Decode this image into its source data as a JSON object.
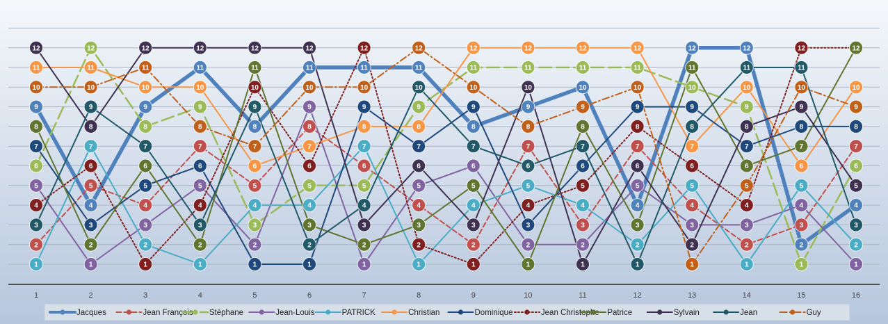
{
  "chart_data": {
    "type": "line",
    "title": "",
    "xlabel": "",
    "ylabel": "",
    "x": [
      "1",
      "2",
      "3",
      "4",
      "5",
      "6",
      "7",
      "8",
      "9",
      "10",
      "11",
      "12",
      "13",
      "14",
      "15",
      "16"
    ],
    "ylim": [
      0,
      13
    ],
    "grid": true,
    "legend_position": "bottom",
    "series": [
      {
        "name": "Jacques",
        "color": "#4f81bd",
        "dash": "solid",
        "width": 5.5,
        "values": [
          9,
          4,
          9,
          11,
          8,
          11,
          11,
          11,
          8,
          9,
          10,
          4,
          12,
          12,
          2,
          4
        ]
      },
      {
        "name": "Jean François",
        "color": "#c0504d",
        "dash": "dashed",
        "width": 2,
        "values": [
          2,
          5,
          4,
          7,
          5,
          8,
          6,
          4,
          2,
          7,
          3,
          7,
          4,
          2,
          3,
          7
        ]
      },
      {
        "name": "Stéphane",
        "color": "#9bbb59",
        "dash": "longdash",
        "width": 2.5,
        "values": [
          6,
          12,
          8,
          9,
          3,
          5,
          5,
          9,
          11,
          11,
          11,
          11,
          10,
          9,
          1,
          6
        ]
      },
      {
        "name": "Jean-Louis",
        "color": "#8064a2",
        "dash": "solid",
        "width": 2,
        "values": [
          5,
          1,
          3,
          5,
          2,
          9,
          1,
          5,
          6,
          2,
          2,
          5,
          3,
          3,
          4,
          1
        ]
      },
      {
        "name": "PATRICK",
        "color": "#4bacc6",
        "dash": "solid",
        "width": 2,
        "values": [
          1,
          7,
          2,
          1,
          4,
          4,
          7,
          1,
          4,
          5,
          4,
          2,
          5,
          1,
          5,
          2
        ]
      },
      {
        "name": "Christian",
        "color": "#f79646",
        "dash": "solid",
        "width": 2,
        "values": [
          11,
          11,
          10,
          10,
          6,
          7,
          8,
          8,
          12,
          12,
          12,
          12,
          7,
          10,
          6,
          10
        ]
      },
      {
        "name": "Dominique",
        "color": "#1f497d",
        "dash": "solid",
        "width": 2,
        "values": [
          7,
          3,
          5,
          6,
          1,
          1,
          9,
          7,
          9,
          3,
          6,
          9,
          9,
          7,
          8,
          8
        ]
      },
      {
        "name": "Jean Christophe",
        "color": "#7f1f1f",
        "dash": "dotted",
        "width": 2,
        "values": [
          4,
          6,
          1,
          4,
          10,
          6,
          12,
          2,
          1,
          4,
          5,
          8,
          6,
          4,
          12,
          12
        ]
      },
      {
        "name": "Patrice",
        "color": "#5f7530",
        "dash": "solid",
        "width": 2,
        "values": [
          8,
          2,
          6,
          2,
          11,
          3,
          2,
          3,
          5,
          1,
          8,
          3,
          11,
          6,
          7,
          12
        ]
      },
      {
        "name": "Sylvain",
        "color": "#3f3151",
        "dash": "solid",
        "width": 2,
        "values": [
          12,
          8,
          12,
          12,
          12,
          12,
          3,
          6,
          3,
          10,
          1,
          6,
          2,
          8,
          9,
          5
        ]
      },
      {
        "name": "Jean",
        "color": "#215968",
        "dash": "solid",
        "width": 2,
        "values": [
          3,
          9,
          7,
          3,
          9,
          2,
          4,
          10,
          7,
          6,
          7,
          1,
          8,
          11,
          11,
          3
        ]
      },
      {
        "name": "Guy",
        "color": "#c0601a",
        "dash": "dashdot",
        "width": 2,
        "values": [
          10,
          10,
          11,
          8,
          7,
          10,
          10,
          12,
          10,
          8,
          9,
          10,
          1,
          5,
          10,
          9
        ]
      }
    ]
  }
}
